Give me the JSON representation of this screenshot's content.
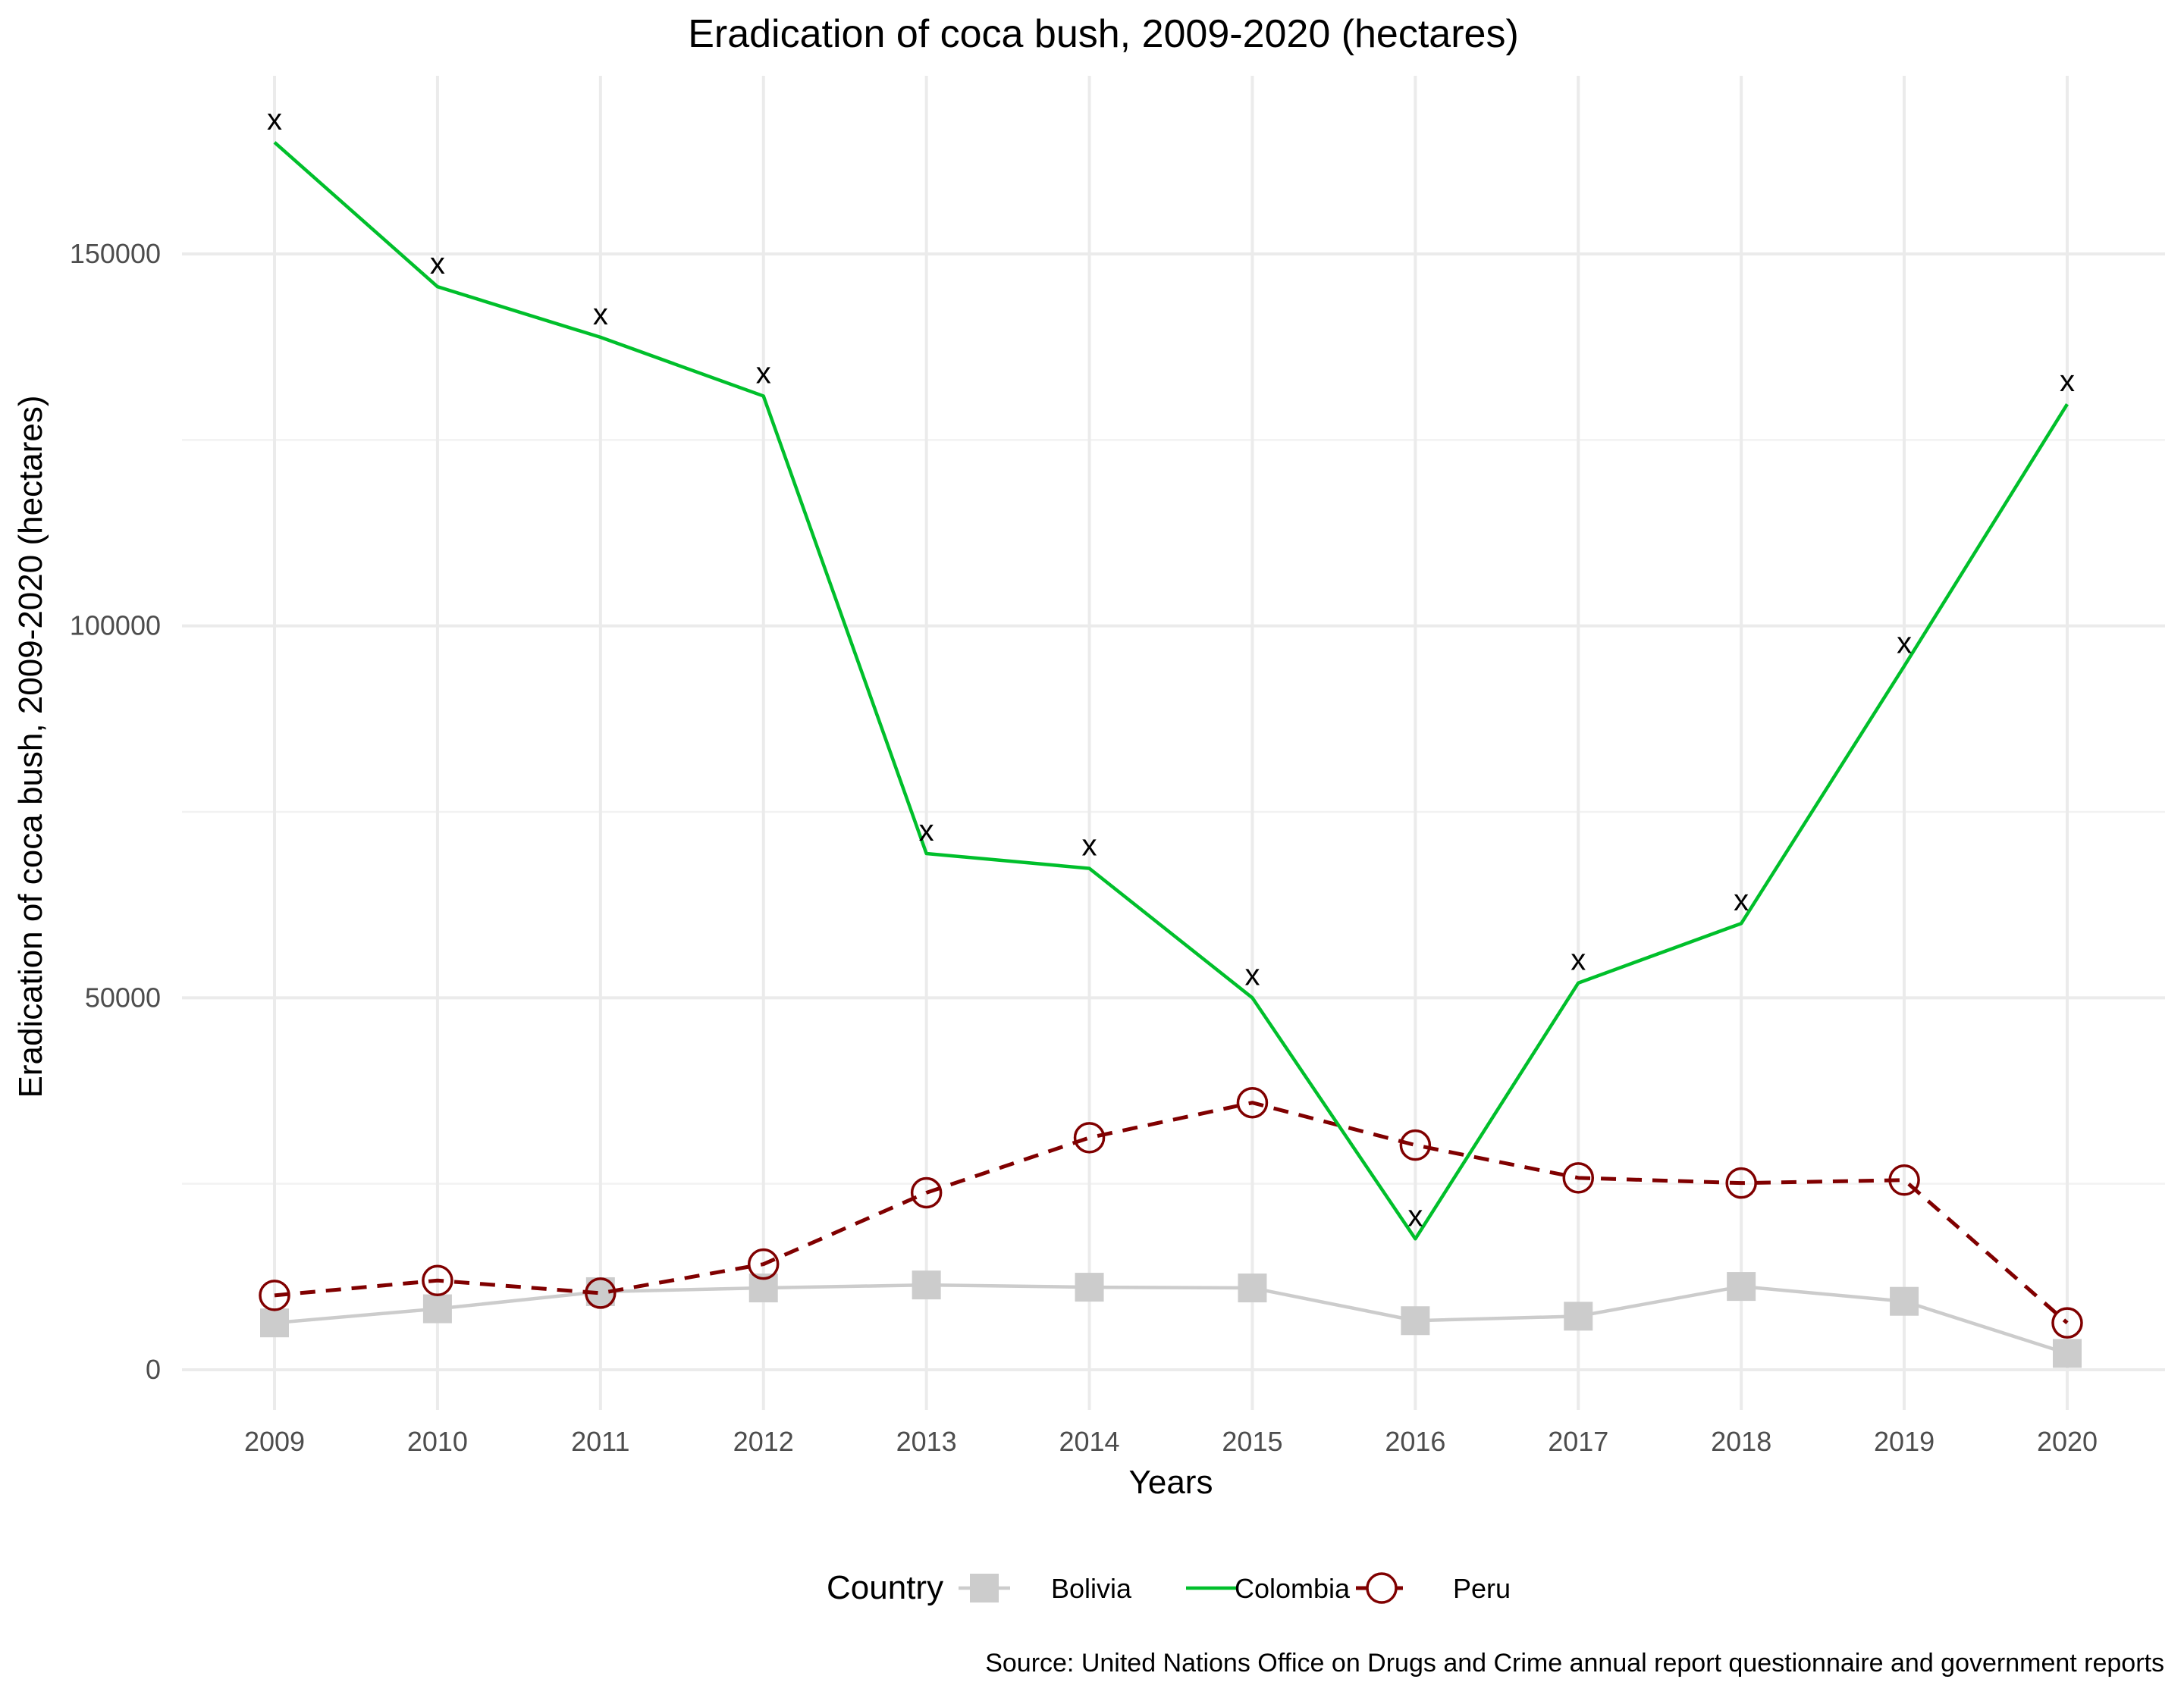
{
  "chart_data": {
    "type": "line",
    "title": "Eradication of coca bush, 2009-2020 (hectares)",
    "xlabel": "Years",
    "ylabel": "Eradication of coca bush, 2009-2020 (hectares)",
    "caption": "Source: United Nations Office on Drugs and Crime annual report questionnaire and government reports",
    "x": [
      2009,
      2010,
      2011,
      2012,
      2013,
      2014,
      2015,
      2016,
      2017,
      2018,
      2019,
      2020
    ],
    "ylim": [
      -5000,
      170000
    ],
    "yticks": [
      0,
      50000,
      100000,
      150000
    ],
    "ytick_labels": [
      "0",
      "50000",
      "100000",
      "150000"
    ],
    "grid": true,
    "legend_title": "Country",
    "legend_position": "bottom",
    "series": [
      {
        "name": "Bolivia",
        "color": "#cccccc",
        "line": "solid",
        "marker": "square",
        "values": [
          6300,
          8200,
          10500,
          11000,
          11400,
          11100,
          11000,
          6600,
          7200,
          11200,
          9200,
          2200
        ]
      },
      {
        "name": "Colombia",
        "color": "#00bf2b",
        "line": "solid",
        "marker": "none",
        "point_label": "x",
        "values": [
          165000,
          145600,
          138800,
          130900,
          69400,
          67400,
          50000,
          17600,
          52000,
          60000,
          94600,
          129800
        ]
      },
      {
        "name": "Peru",
        "color": "#800000",
        "line": "dashed",
        "marker": "open-circle",
        "values": [
          10000,
          12000,
          10300,
          14200,
          23800,
          31200,
          35900,
          30200,
          25800,
          25100,
          25500,
          6300
        ]
      }
    ]
  }
}
